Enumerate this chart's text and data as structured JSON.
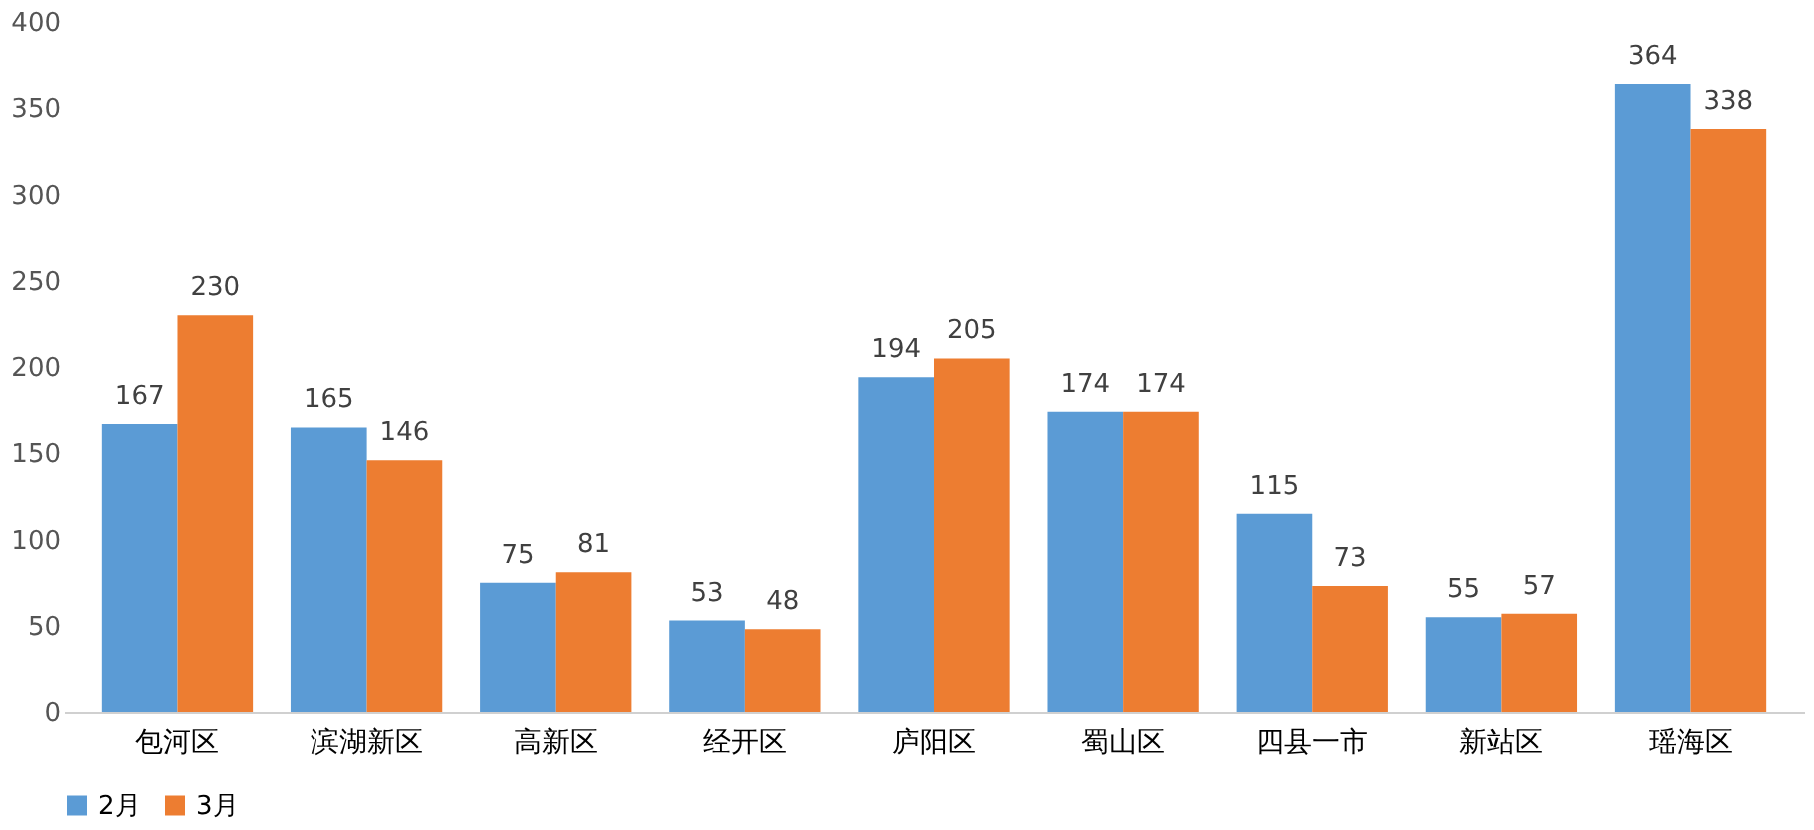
{
  "chart_data": {
    "type": "bar",
    "categories": [
      "包河区",
      "滨湖新区",
      "高新区",
      "经开区",
      "庐阳区",
      "蜀山区",
      "四县一市",
      "新站区",
      "瑶海区"
    ],
    "series": [
      {
        "name": "2月",
        "color": "#5b9bd5",
        "values": [
          167,
          165,
          75,
          53,
          194,
          174,
          115,
          55,
          364
        ]
      },
      {
        "name": "3月",
        "color": "#ed7d31",
        "values": [
          230,
          146,
          81,
          48,
          205,
          174,
          73,
          57,
          338
        ]
      }
    ],
    "ylim": [
      0,
      400
    ],
    "yticks": [
      0,
      50,
      100,
      150,
      200,
      250,
      300,
      350,
      400
    ],
    "grid": false,
    "legend": "bottom",
    "data_labels": true
  }
}
